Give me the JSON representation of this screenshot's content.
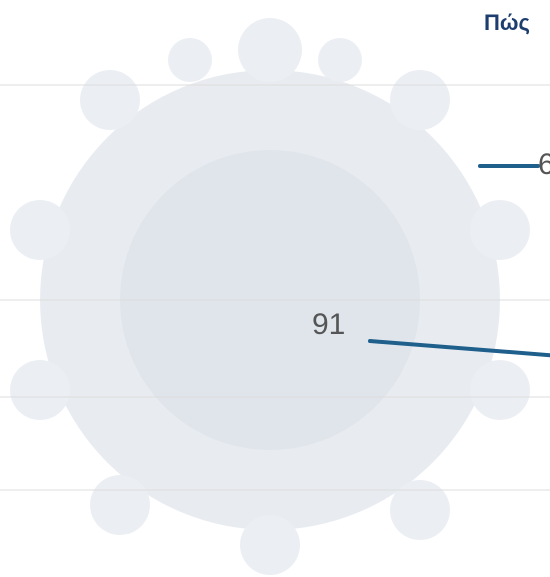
{
  "chart_data": {
    "type": "line",
    "title": "Πώς",
    "annotations": [
      "91",
      "6"
    ],
    "color": "#1f5f8b"
  }
}
